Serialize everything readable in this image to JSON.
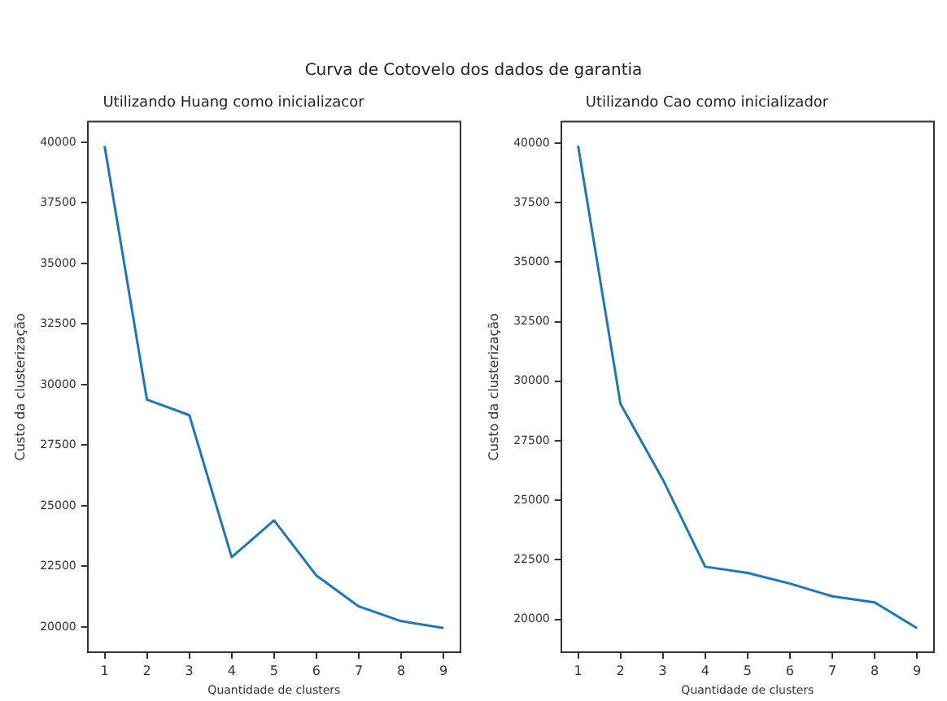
{
  "chart_data": [
    {
      "type": "line",
      "title": "Utilizando Huang como inicializacor",
      "xlabel": "Quantidade de clusters",
      "ylabel": "Custo da clusterização",
      "annotations": [
        "Curva de Cotovelo dos dados de garantia"
      ],
      "x": [
        1,
        2,
        3,
        4,
        5,
        6,
        7,
        8,
        9
      ],
      "series": [
        {
          "color": "#1f77b4",
          "values": [
            39850,
            29380,
            28740,
            22880,
            24400,
            22120,
            20850,
            20240,
            19960
          ]
        }
      ],
      "xlim": [
        0.6,
        9.4
      ],
      "xticks": [
        1,
        2,
        3,
        4,
        5,
        6,
        7,
        8,
        9
      ],
      "ylim": [
        18960,
        40850
      ],
      "yticks": [
        20000,
        22500,
        25000,
        27500,
        30000,
        32500,
        35000,
        37500,
        40000
      ],
      "grid": false,
      "legend": false,
      "marker": "none",
      "line_style": "solid"
    },
    {
      "type": "line",
      "title": "Utilizando Cao como inicializador",
      "xlabel": "Quantidade de clusters",
      "ylabel": "Custo da clusterização",
      "x": [
        1,
        2,
        3,
        4,
        5,
        6,
        7,
        8,
        9
      ],
      "series": [
        {
          "color": "#1f77b4",
          "values": [
            39890,
            29050,
            25870,
            22210,
            21950,
            21500,
            20970,
            20710,
            19630
          ]
        }
      ],
      "xlim": [
        0.6,
        9.4
      ],
      "xticks": [
        1,
        2,
        3,
        4,
        5,
        6,
        7,
        8,
        9
      ],
      "ylim": [
        18620,
        40900
      ],
      "yticks": [
        20000,
        22500,
        25000,
        27500,
        30000,
        32500,
        35000,
        37500,
        40000
      ],
      "grid": false,
      "legend": false,
      "marker": "none",
      "line_style": "solid"
    }
  ]
}
